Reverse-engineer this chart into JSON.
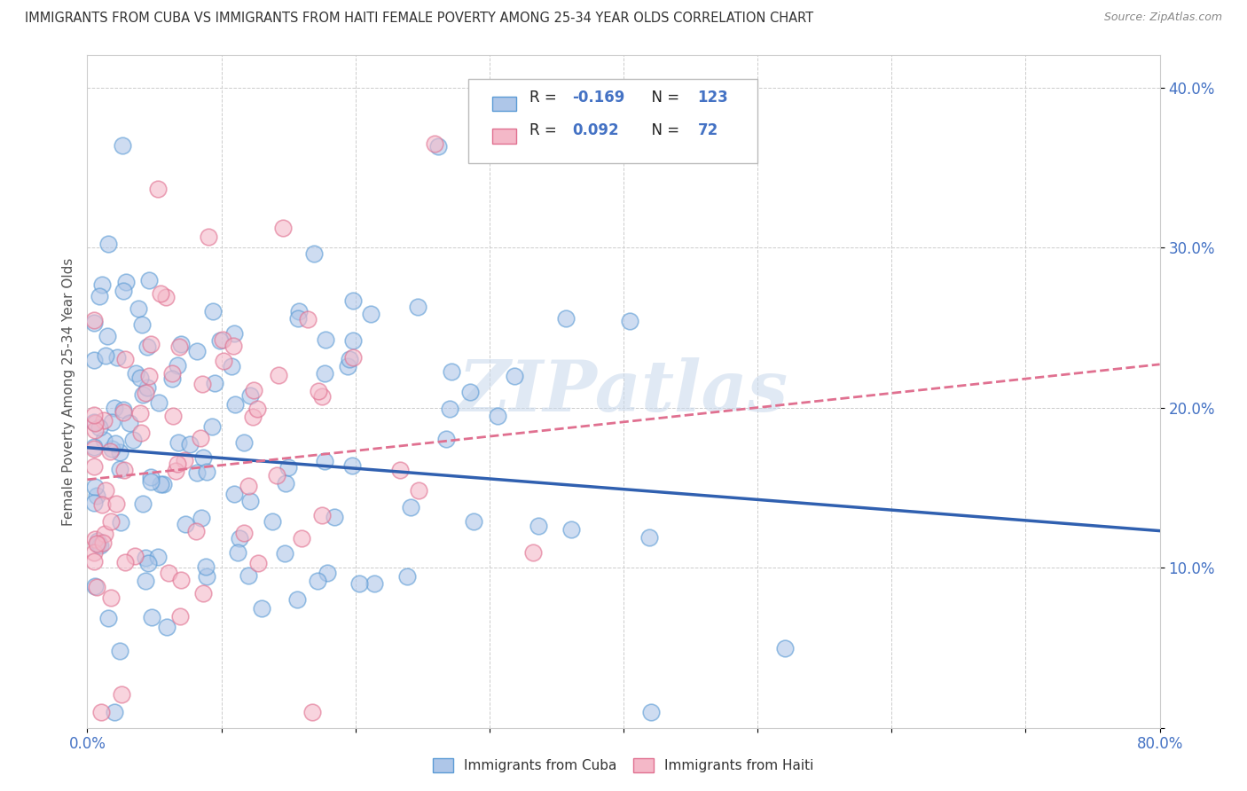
{
  "title": "IMMIGRANTS FROM CUBA VS IMMIGRANTS FROM HAITI FEMALE POVERTY AMONG 25-34 YEAR OLDS CORRELATION CHART",
  "source": "Source: ZipAtlas.com",
  "ylabel": "Female Poverty Among 25-34 Year Olds",
  "xlim": [
    0.0,
    0.8
  ],
  "ylim": [
    0.0,
    0.42
  ],
  "xticks": [
    0.0,
    0.1,
    0.2,
    0.3,
    0.4,
    0.5,
    0.6,
    0.7,
    0.8
  ],
  "xticklabels": [
    "0.0%",
    "",
    "",
    "",
    "",
    "",
    "",
    "",
    "80.0%"
  ],
  "yticks": [
    0.0,
    0.1,
    0.2,
    0.3,
    0.4
  ],
  "yticklabels": [
    "",
    "10.0%",
    "20.0%",
    "30.0%",
    "40.0%"
  ],
  "cuba_fill": "#aec6e8",
  "cuba_edge": "#5b9bd5",
  "haiti_fill": "#f4b8c8",
  "haiti_edge": "#e07090",
  "cuba_line_color": "#3060b0",
  "haiti_line_color": "#e07090",
  "legend_R_cuba": "-0.169",
  "legend_N_cuba": "123",
  "legend_R_haiti": "0.092",
  "legend_N_haiti": "72",
  "watermark": "ZIPatlas",
  "background_color": "#ffffff",
  "grid_color": "#cccccc",
  "title_color": "#333333",
  "axis_label_color": "#555555",
  "tick_label_color": "#4472c4",
  "legend_value_color": "#4472c4",
  "legend_label_color": "#333333",
  "cuba_intercept": 0.175,
  "cuba_slope": -0.065,
  "haiti_intercept": 0.155,
  "haiti_slope": 0.09
}
